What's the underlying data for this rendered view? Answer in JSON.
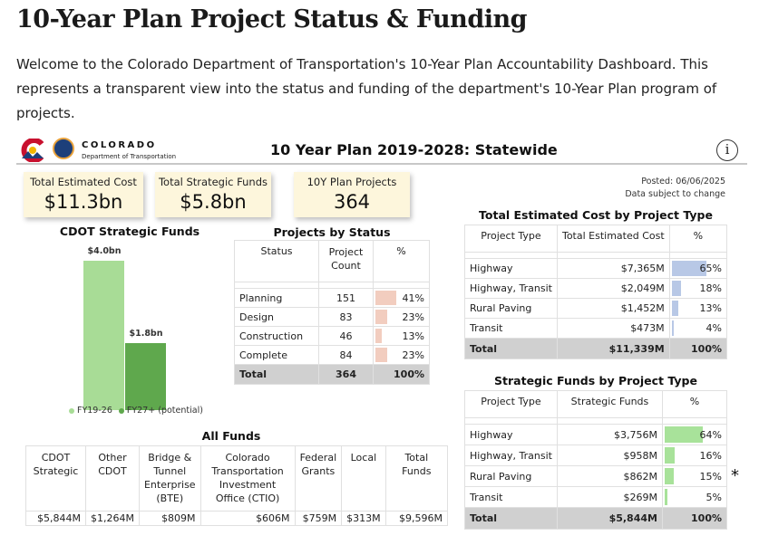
{
  "page": {
    "title": "10-Year Plan Project Status & Funding",
    "intro": "Welcome to the Colorado Department of Transportation's 10-Year Plan Accountability Dashboard. This represents a transparent view into the status and funding of the department's 10-Year Plan program of projects."
  },
  "header": {
    "logo_line1": "COLORADO",
    "logo_line2": "Department of Transportation",
    "title": "10 Year Plan 2019-2028: Statewide",
    "info_glyph": "i",
    "posted": "Posted: 06/06/2025",
    "disclaimer": "Data subject to change"
  },
  "kpis": [
    {
      "label": "Total Estimated Cost",
      "value": "$11.3bn"
    },
    {
      "label": "Total Strategic Funds",
      "value": "$5.8bn"
    },
    {
      "label": "10Y Plan Projects",
      "value": "364"
    }
  ],
  "strategic_funds_chart": {
    "title": "CDOT Strategic Funds",
    "colors": [
      "#a8dc96",
      "#5fa84d"
    ],
    "legend_bullet": "●"
  },
  "chart_data": {
    "type": "bar",
    "title": "CDOT Strategic Funds",
    "categories": [
      "FY19-26",
      "FY27+ (potential)"
    ],
    "values": [
      4.0,
      1.8
    ],
    "value_labels": [
      "$4.0bn",
      "$1.8bn"
    ],
    "ylim": [
      0,
      4.0
    ],
    "legend": "bottom"
  },
  "status_table": {
    "title": "Projects by Status",
    "headers": [
      "Status",
      "Project Count",
      "%"
    ],
    "rows": [
      {
        "status": "Planning",
        "count": "151",
        "pct": "41%",
        "fill": 0.41
      },
      {
        "status": "Design",
        "count": "83",
        "pct": "23%",
        "fill": 0.23
      },
      {
        "status": "Construction",
        "count": "46",
        "pct": "13%",
        "fill": 0.13
      },
      {
        "status": "Complete",
        "count": "84",
        "pct": "23%",
        "fill": 0.23
      }
    ],
    "total": {
      "label": "Total",
      "count": "364",
      "pct": "100%"
    },
    "bar_color": "#f2cdbf"
  },
  "cost_table": {
    "title": "Total Estimated Cost by Project Type",
    "headers": [
      "Project Type",
      "Total Estimated Cost",
      "%"
    ],
    "rows": [
      {
        "type": "Highway",
        "value": "$7,365M",
        "pct": "65%",
        "fill": 0.65
      },
      {
        "type": "Highway, Transit",
        "value": "$2,049M",
        "pct": "18%",
        "fill": 0.18
      },
      {
        "type": "Rural Paving",
        "value": "$1,452M",
        "pct": "13%",
        "fill": 0.13
      },
      {
        "type": "Transit",
        "value": "$473M",
        "pct": "4%",
        "fill": 0.04
      }
    ],
    "total": {
      "label": "Total",
      "value": "$11,339M",
      "pct": "100%"
    },
    "bar_color": "#b8c8e6"
  },
  "funds_table": {
    "title": "Strategic Funds by Project Type",
    "headers": [
      "Project Type",
      "Strategic Funds",
      "%"
    ],
    "rows": [
      {
        "type": "Highway",
        "value": "$3,756M",
        "pct": "64%",
        "fill": 0.64
      },
      {
        "type": "Highway, Transit",
        "value": "$958M",
        "pct": "16%",
        "fill": 0.16
      },
      {
        "type": "Rural Paving",
        "value": "$862M",
        "pct": "15%",
        "fill": 0.15
      },
      {
        "type": "Transit",
        "value": "$269M",
        "pct": "5%",
        "fill": 0.05
      }
    ],
    "total": {
      "label": "Total",
      "value": "$5,844M",
      "pct": "100%"
    },
    "bar_color": "#a8e29a",
    "note": "*"
  },
  "all_funds": {
    "title": "All Funds",
    "headers": [
      "CDOT Strategic",
      "Other CDOT",
      "Bridge & Tunnel Enterprise (BTE)",
      "Colorado Transportation Investment Office (CTIO)",
      "Federal Grants",
      "Local",
      "Total Funds"
    ],
    "values": [
      "$5,844M",
      "$1,264M",
      "$809M",
      "$606M",
      "$759M",
      "$313M",
      "$9,596M"
    ]
  }
}
